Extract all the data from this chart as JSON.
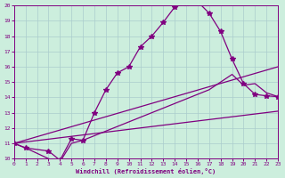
{
  "xlabel": "Windchill (Refroidissement éolien,°C)",
  "bg_color": "#cceedd",
  "line_color": "#800080",
  "xlim": [
    0,
    23
  ],
  "ylim": [
    10,
    20
  ],
  "yticks": [
    10,
    11,
    12,
    13,
    14,
    15,
    16,
    17,
    18,
    19,
    20
  ],
  "xticks": [
    0,
    1,
    2,
    3,
    4,
    5,
    6,
    7,
    8,
    9,
    10,
    11,
    12,
    13,
    14,
    15,
    16,
    17,
    18,
    19,
    20,
    21,
    22,
    23
  ],
  "curve1": {
    "x": [
      0,
      1,
      3,
      4,
      5,
      6,
      7,
      8,
      9,
      10,
      11,
      12,
      13,
      14,
      15,
      16,
      17,
      18,
      19,
      20,
      21,
      22,
      23
    ],
    "y": [
      11.0,
      10.7,
      10.5,
      9.9,
      11.3,
      11.2,
      13.0,
      14.5,
      15.6,
      16.0,
      17.3,
      18.0,
      18.9,
      19.9,
      20.15,
      20.25,
      19.5,
      18.3,
      16.5,
      14.9,
      14.2,
      14.1,
      14.05
    ],
    "marker": "*",
    "ms": 4,
    "ls": "-",
    "lw": 0.9
  },
  "curve2": {
    "x": [
      0,
      1,
      3,
      4,
      5,
      6,
      17,
      18,
      19,
      20,
      21,
      22,
      23
    ],
    "y": [
      11.0,
      10.7,
      10.0,
      9.8,
      11.0,
      11.2,
      14.5,
      15.0,
      15.5,
      14.8,
      14.9,
      14.3,
      14.05
    ],
    "marker": null,
    "ms": 0,
    "ls": "-",
    "lw": 0.9
  },
  "curve3": {
    "x": [
      0,
      23
    ],
    "y": [
      11.0,
      16.0
    ],
    "marker": null,
    "ms": 0,
    "ls": "-",
    "lw": 0.9
  },
  "curve4": {
    "x": [
      0,
      23
    ],
    "y": [
      11.0,
      13.1
    ],
    "marker": null,
    "ms": 0,
    "ls": "-",
    "lw": 0.9
  }
}
